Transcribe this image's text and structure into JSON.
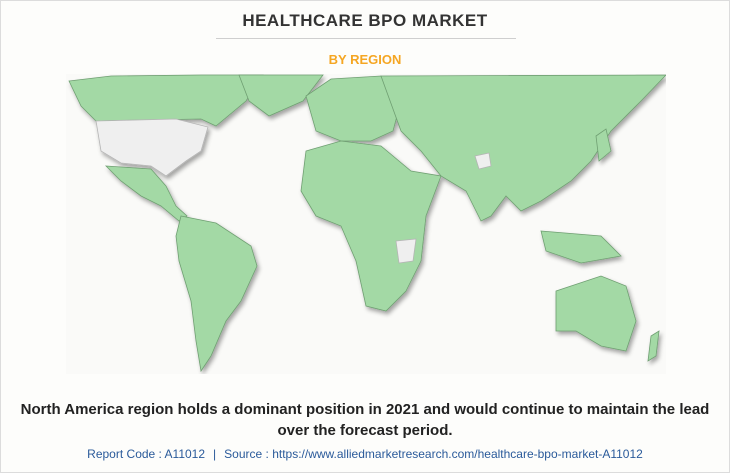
{
  "header": {
    "title": "HEALTHCARE BPO MARKET",
    "subtitle": "BY REGION"
  },
  "caption": "North America region holds a dominant position in 2021 and would continue to maintain the lead over the forecast period.",
  "footer": {
    "report_code": "Report Code : A11012",
    "separator": "|",
    "source": "Source : https://www.alliedmarketresearch.com/healthcare-bpo-market-A11012"
  }
}
